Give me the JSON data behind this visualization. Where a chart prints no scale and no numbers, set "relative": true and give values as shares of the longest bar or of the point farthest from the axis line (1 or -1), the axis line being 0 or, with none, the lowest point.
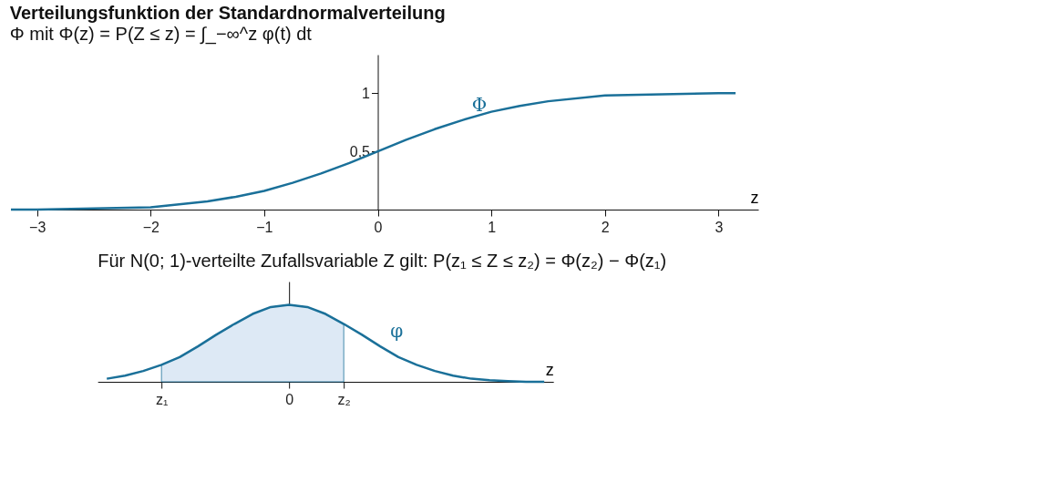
{
  "chart_data": [
    {
      "type": "line",
      "title": "Verteilungsfunktion der Standardnormalverteilung",
      "subtitle": "Φ mit  Φ(z) = P(Z ≤ z) = ∫_−∞^z φ(t) dt",
      "xlabel": "z",
      "series": [
        {
          "name": "Φ",
          "color": "#1a7099",
          "x": [
            -3.23,
            -3,
            -2.5,
            -2,
            -1.5,
            -1.25,
            -1,
            -0.75,
            -0.5,
            -0.25,
            0,
            0.25,
            0.5,
            0.75,
            1,
            1.25,
            1.5,
            2,
            2.5,
            3,
            3.15
          ],
          "values": [
            0.0,
            0.0,
            0.01,
            0.02,
            0.07,
            0.11,
            0.16,
            0.23,
            0.31,
            0.4,
            0.5,
            0.6,
            0.69,
            0.77,
            0.84,
            0.89,
            0.93,
            0.98,
            0.99,
            1.0,
            1.0
          ]
        }
      ],
      "xlim": [
        -3.23,
        3.35
      ],
      "ylim": [
        0,
        1.33
      ],
      "xticks": [
        {
          "value": -3,
          "label": "−3"
        },
        {
          "value": -2,
          "label": "−2"
        },
        {
          "value": -1,
          "label": "−1"
        },
        0,
        1,
        2,
        3
      ],
      "yticks": [
        {
          "value": 0.5,
          "label": "0,5"
        },
        1
      ],
      "grid": false
    },
    {
      "type": "line",
      "title": "Für N(0; 1)-verteilte Zufallsvariable Z gilt:  P(z₁ ≤ Z ≤ z₂) = Φ(z₂) − Φ(z₁)",
      "xlabel": "z",
      "relative": true,
      "categories": [
        null,
        null,
        null,
        "z₁",
        null,
        null,
        null,
        null,
        null,
        null,
        "0",
        null,
        null,
        "z₂",
        null,
        null,
        null,
        null,
        null,
        null,
        null,
        null,
        null,
        null,
        null
      ],
      "series": [
        {
          "type": "area",
          "color": "#dde9f5",
          "values": [
            null,
            null,
            null,
            0.22,
            0.32,
            0.46,
            0.61,
            0.75,
            0.88,
            0.97,
            1,
            0.97,
            0.88,
            0.75,
            null,
            null,
            null,
            null,
            null,
            null,
            null,
            null,
            null,
            null,
            null
          ]
        },
        {
          "name": "φ",
          "color": "#1a7099",
          "values": [
            0.04,
            0.08,
            0.14,
            0.22,
            0.32,
            0.46,
            0.61,
            0.75,
            0.88,
            0.97,
            1,
            0.97,
            0.88,
            0.75,
            0.61,
            0.46,
            0.32,
            0.22,
            0.14,
            0.08,
            0.04,
            0.02,
            0.01,
            0.0,
            0.0
          ]
        }
      ]
    }
  ]
}
